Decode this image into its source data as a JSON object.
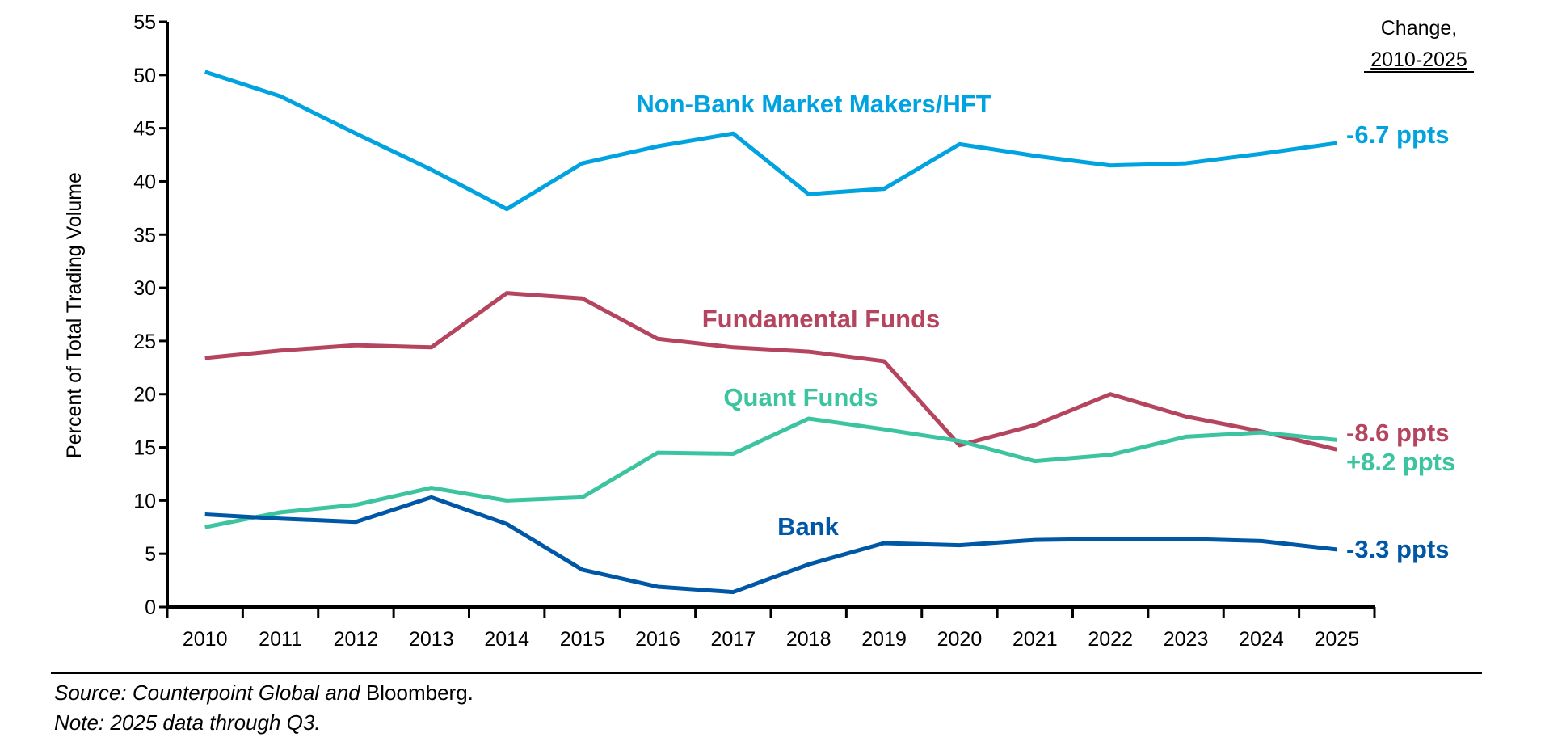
{
  "chart_data": {
    "type": "line",
    "ylabel": "Percent of Total Trading Volume",
    "xlabel": "",
    "ylim": [
      0,
      55
    ],
    "yticks": [
      0,
      5,
      10,
      15,
      20,
      25,
      30,
      35,
      40,
      45,
      50,
      55
    ],
    "categories": [
      "2010",
      "2011",
      "2012",
      "2013",
      "2014",
      "2015",
      "2016",
      "2017",
      "2018",
      "2019",
      "2020",
      "2021",
      "2022",
      "2023",
      "2024",
      "2025"
    ],
    "grid": false,
    "change_header": {
      "line1": "Change,",
      "line2": "2010-2025"
    },
    "series": [
      {
        "name": "Non-Bank Market Makers/HFT",
        "color": "#00A3E0",
        "change": "-6.7 ppts",
        "values": [
          50.3,
          48.0,
          44.5,
          41.1,
          37.4,
          41.7,
          43.3,
          44.5,
          38.8,
          39.3,
          43.5,
          42.4,
          41.5,
          41.7,
          42.6,
          43.6
        ]
      },
      {
        "name": "Fundamental Funds",
        "color": "#B5445F",
        "change": "-8.6 ppts",
        "values": [
          23.4,
          24.1,
          24.6,
          24.4,
          29.5,
          29.0,
          25.2,
          24.4,
          24.0,
          23.1,
          15.2,
          17.1,
          20.0,
          17.9,
          16.5,
          14.8
        ]
      },
      {
        "name": "Quant Funds",
        "color": "#3CC4A0",
        "change": "+8.2 ppts",
        "values": [
          7.5,
          8.9,
          9.6,
          11.2,
          10.0,
          10.3,
          14.5,
          14.4,
          17.7,
          16.7,
          15.6,
          13.7,
          14.3,
          16.0,
          16.4,
          15.7
        ]
      },
      {
        "name": "Bank",
        "color": "#0057A6",
        "change": "-3.3 ppts",
        "values": [
          8.7,
          8.3,
          8.0,
          10.3,
          7.8,
          3.5,
          1.9,
          1.4,
          4.0,
          6.0,
          5.8,
          6.3,
          6.4,
          6.4,
          6.2,
          5.4
        ]
      }
    ]
  },
  "footer": {
    "source_italic": "Source: Counterpoint Global and",
    "source_plain": " Bloomberg.",
    "note": "Note: 2025 data through Q3."
  }
}
